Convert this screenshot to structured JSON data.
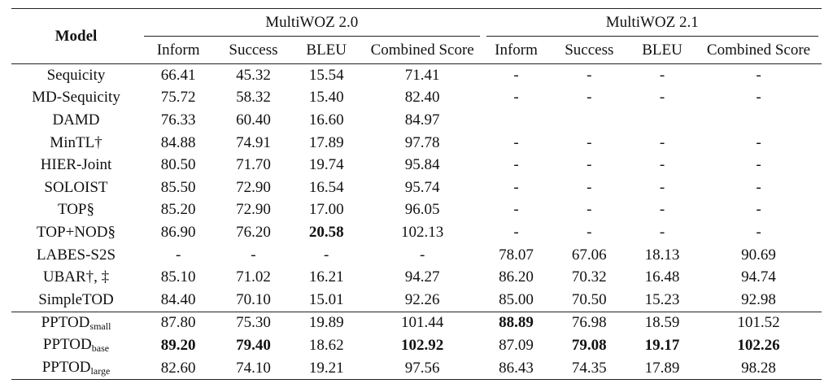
{
  "header": {
    "model": "Model",
    "group1": "MultiWOZ 2.0",
    "group2": "MultiWOZ 2.1",
    "columns": [
      "Inform",
      "Success",
      "BLEU",
      "Combined Score",
      "Inform",
      "Success",
      "BLEU",
      "Combined Score"
    ]
  },
  "rows": [
    {
      "model": "Sequicity",
      "cells": [
        "66.41",
        "45.32",
        "15.54",
        "71.41",
        "-",
        "-",
        "-",
        "-"
      ]
    },
    {
      "model": "MD-Sequicity",
      "cells": [
        "75.72",
        "58.32",
        "15.40",
        "82.40",
        "-",
        "-",
        "-",
        "-"
      ]
    },
    {
      "model": "DAMD",
      "cells": [
        "76.33",
        "60.40",
        "16.60",
        "84.97",
        "",
        "",
        "",
        ""
      ]
    },
    {
      "model": "MinTL†",
      "cells": [
        "84.88",
        "74.91",
        "17.89",
        "97.78",
        "-",
        "-",
        "-",
        "-"
      ]
    },
    {
      "model": "HIER-Joint",
      "cells": [
        "80.50",
        "71.70",
        "19.74",
        "95.84",
        "-",
        "-",
        "-",
        "-"
      ]
    },
    {
      "model": "SOLOIST",
      "cells": [
        "85.50",
        "72.90",
        "16.54",
        "95.74",
        "-",
        "-",
        "-",
        "-"
      ]
    },
    {
      "model": "TOP§",
      "cells": [
        "85.20",
        "72.90",
        "17.00",
        "96.05",
        "-",
        "-",
        "-",
        "-"
      ]
    },
    {
      "model": "TOP+NOD§",
      "cells": [
        "86.90",
        "76.20",
        "20.58",
        "102.13",
        "-",
        "-",
        "-",
        "-"
      ],
      "bold": [
        2
      ]
    },
    {
      "model": "LABES-S2S",
      "cells": [
        "-",
        "-",
        "-",
        "-",
        "78.07",
        "67.06",
        "18.13",
        "90.69"
      ]
    },
    {
      "model": "UBAR†, ‡",
      "cells": [
        "85.10",
        "71.02",
        "16.21",
        "94.27",
        "86.20",
        "70.32",
        "16.48",
        "94.74"
      ]
    },
    {
      "model": "SimpleTOD",
      "cells": [
        "84.40",
        "70.10",
        "15.01",
        "92.26",
        "85.00",
        "70.50",
        "15.23",
        "92.98"
      ]
    }
  ],
  "pptod_rows": [
    {
      "model": "PPTOD",
      "sub": "small",
      "cells": [
        "87.80",
        "75.30",
        "19.89",
        "101.44",
        "88.89",
        "76.98",
        "18.59",
        "101.52"
      ],
      "bold": [
        4
      ]
    },
    {
      "model": "PPTOD",
      "sub": "base",
      "cells": [
        "89.20",
        "79.40",
        "18.62",
        "102.92",
        "87.09",
        "79.08",
        "19.17",
        "102.26"
      ],
      "bold": [
        0,
        1,
        3,
        5,
        6,
        7
      ]
    },
    {
      "model": "PPTOD",
      "sub": "large",
      "cells": [
        "82.60",
        "74.10",
        "19.21",
        "97.56",
        "86.43",
        "74.35",
        "17.89",
        "98.28"
      ]
    }
  ]
}
